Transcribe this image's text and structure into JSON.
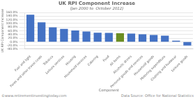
{
  "chart_data": {
    "type": "bar",
    "title": "UK RPI Component Increase",
    "subtitle": "(Jan 2000 to  October 2012)",
    "categories": [
      "Fuel and light",
      "Fares and other travel costs",
      "Tobacco",
      "Leisure services",
      "Housing",
      "Household services",
      "Catering",
      "Food",
      "All items",
      "Alcoholic drinks",
      "Personal goods and services",
      "Household goods",
      "Motoring expenditure",
      "Clothing and footwear",
      "Leisure goods"
    ],
    "values": [
      148.0,
      106.0,
      79.0,
      70.0,
      62.0,
      56.0,
      50.0,
      49.0,
      47.0,
      45.0,
      41.0,
      37.0,
      34.0,
      6.0,
      -20.0
    ],
    "colors": [
      "#4472C4",
      "#4472C4",
      "#4472C4",
      "#4472C4",
      "#4472C4",
      "#4472C4",
      "#4472C4",
      "#4472C4",
      "#6B8E23",
      "#4472C4",
      "#4472C4",
      "#4472C4",
      "#4472C4",
      "#4472C4",
      "#4472C4"
    ],
    "ylim": [
      -40,
      160
    ],
    "yticks": [
      {
        "value": -40,
        "label": "-40.0%"
      },
      {
        "value": -20,
        "label": "-20.0%"
      },
      {
        "value": 0,
        "label": "0.0%"
      },
      {
        "value": 20,
        "label": "20.0%"
      },
      {
        "value": 40,
        "label": "40.0%"
      },
      {
        "value": 60,
        "label": "60.0%"
      },
      {
        "value": 80,
        "label": "80.0%"
      },
      {
        "value": 100,
        "label": "100.0%"
      },
      {
        "value": 120,
        "label": "120.0%"
      },
      {
        "value": 140,
        "label": "140.0%"
      },
      {
        "value": 160,
        "label": "160.0%"
      }
    ],
    "ylabel": "UK RPI Component Increase",
    "xlabel": "Component",
    "annotations": [
      "©www.retirementinvestingtoday.com",
      "Data Source: Office for National Statistics"
    ],
    "grid": true
  }
}
